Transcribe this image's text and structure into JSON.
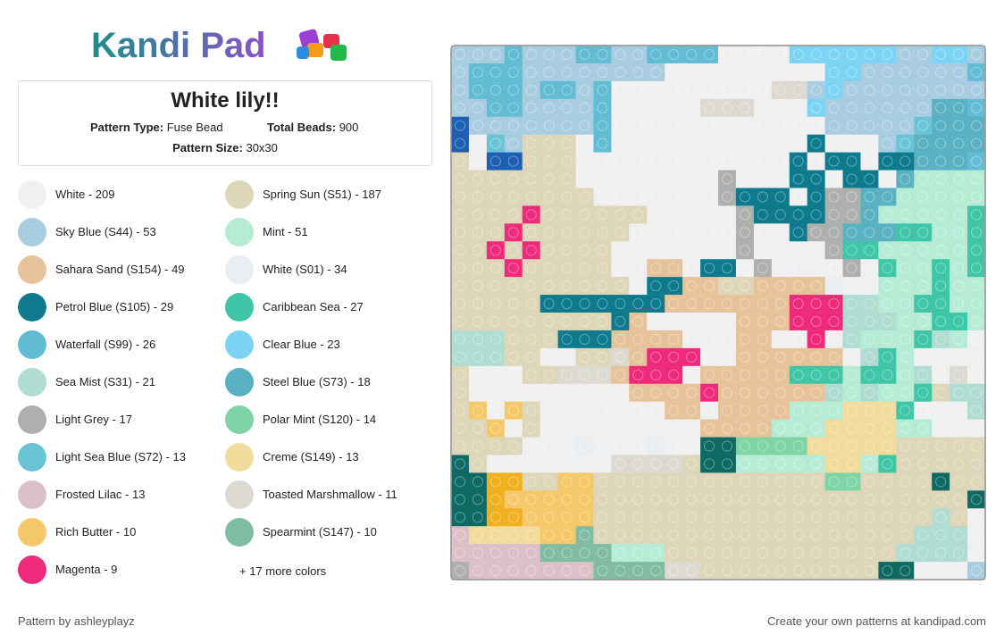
{
  "logo": "Kandi Pad",
  "pattern": {
    "title": "White lily!!",
    "type_label": "Pattern Type:",
    "type": "Fuse Bead",
    "beads_label": "Total Beads:",
    "beads": 900,
    "size_label": "Pattern Size:",
    "size": "30x30"
  },
  "colors": [
    {
      "label": "White - 209",
      "color": "#f0f0f0"
    },
    {
      "label": "Spring Sun (S51) - 187",
      "color": "#ddd6b8"
    },
    {
      "label": "Sky Blue (S44) - 53",
      "color": "#a9cde0"
    },
    {
      "label": "Mint - 51",
      "color": "#b6ecd6"
    },
    {
      "label": "Sahara Sand (S154) - 49",
      "color": "#e6c39a"
    },
    {
      "label": "White (S01) - 34",
      "color": "#e9eef2"
    },
    {
      "label": "Petrol Blue (S105) - 29",
      "color": "#0e7a8e"
    },
    {
      "label": "Caribbean Sea - 27",
      "color": "#3fc6a6"
    },
    {
      "label": "Waterfall (S99) - 26",
      "color": "#62bcd4"
    },
    {
      "label": "Clear Blue - 23",
      "color": "#7dd3f3"
    },
    {
      "label": "Sea Mist (S31) - 21",
      "color": "#b0dcd2"
    },
    {
      "label": "Steel Blue (S73) - 18",
      "color": "#59b1c2"
    },
    {
      "label": "Light Grey - 17",
      "color": "#aeb0ae"
    },
    {
      "label": "Polar Mint (S120) - 14",
      "color": "#7ed4a4"
    },
    {
      "label": "Light Sea Blue (S72) - 13",
      "color": "#69c4d6"
    },
    {
      "label": "Creme (S149) - 13",
      "color": "#f1dc9c"
    },
    {
      "label": "Frosted Lilac - 13",
      "color": "#dcc0c8"
    },
    {
      "label": "Toasted Marshmallow - 11",
      "color": "#dcdad0"
    },
    {
      "label": "Rich Butter - 10",
      "color": "#f5c96a"
    },
    {
      "label": "Spearmint (S147) - 10",
      "color": "#80bca2"
    },
    {
      "label": "Magenta - 9",
      "color": "#ee2a7b"
    }
  ],
  "more_colors": "+ 17 more colors",
  "footer": {
    "author": "Pattern by ashleyplayz",
    "cta": "Create your own patterns at kandipad.com"
  }
}
